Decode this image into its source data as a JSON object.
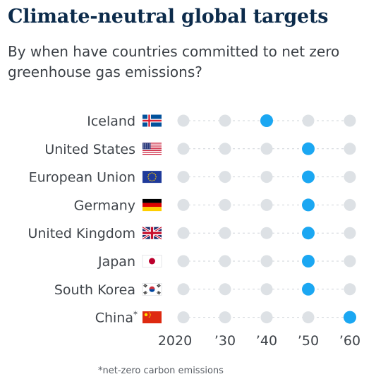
{
  "title": "Climate-neutral global targets",
  "subtitle": "By when have countries committed to net zero greenhouse gas emissions?",
  "footnote": "*net-zero carbon emissions",
  "colors": {
    "highlight": "#1ba7f2",
    "inactive": "#dde1e5",
    "guide": "#cfd4d9",
    "label": "#3f444a",
    "title": "#0c2b4b"
  },
  "chart_data": {
    "type": "scatter",
    "title": "Climate-neutral global targets",
    "x_ticks": [
      "2020",
      "’30",
      "’40",
      "’50",
      "’60"
    ],
    "x_values": [
      2020,
      2030,
      2040,
      2050,
      2060
    ],
    "rows": [
      {
        "country": "Iceland",
        "flag": "iceland-flag",
        "target": 2040
      },
      {
        "country": "United States",
        "flag": "us-flag",
        "target": 2050
      },
      {
        "country": "European Union",
        "flag": "eu-flag",
        "target": 2050
      },
      {
        "country": "Germany",
        "flag": "germany-flag",
        "target": 2050
      },
      {
        "country": "United Kingdom",
        "flag": "uk-flag",
        "target": 2050
      },
      {
        "country": "Japan",
        "flag": "japan-flag",
        "target": 2050
      },
      {
        "country": "South Korea",
        "flag": "south-korea-flag",
        "target": 2050
      },
      {
        "country": "China",
        "footnote_marker": "*",
        "flag": "china-flag",
        "target": 2060
      }
    ]
  }
}
